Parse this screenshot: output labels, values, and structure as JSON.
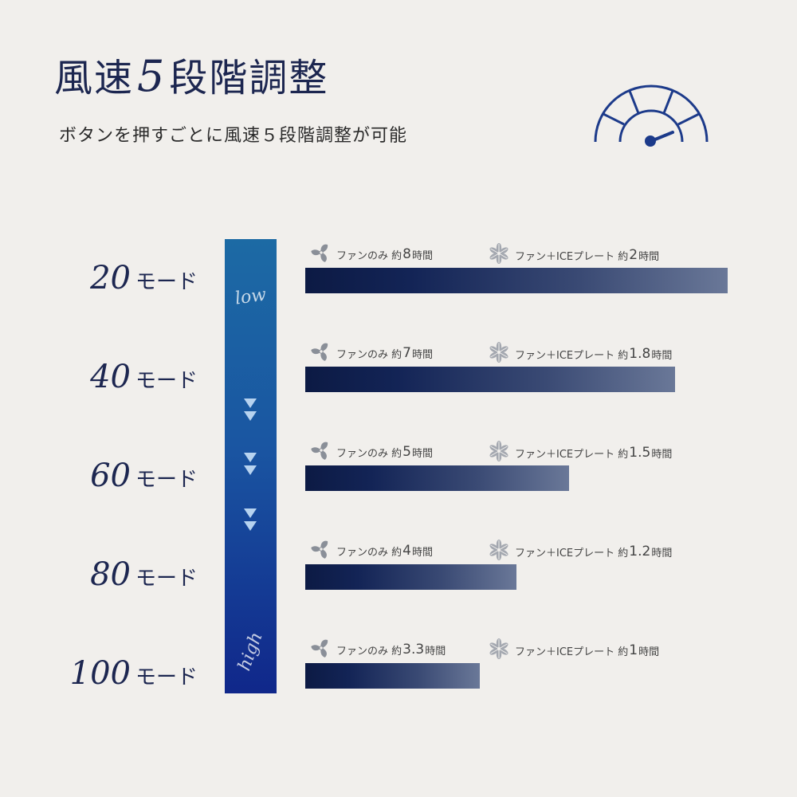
{
  "title": {
    "prefix": "風速",
    "number": "5",
    "suffix": "段階調整"
  },
  "subtitle": "ボタンを押すごとに風速５段階調整が可能",
  "speed_bar": {
    "low_label": "low",
    "high_label": "high"
  },
  "chart_data": {
    "type": "bar",
    "orientation": "horizontal",
    "categories": [
      "20モード",
      "40モード",
      "60モード",
      "80モード",
      "100モード"
    ],
    "values": [
      8,
      7,
      5,
      4,
      3.3
    ],
    "xlim": [
      0,
      8
    ],
    "modes": [
      {
        "number": "20",
        "unit": "モード",
        "fan_prefix": "ファンのみ 約",
        "fan_hours": "8",
        "fan_unit": "時間",
        "ice_prefix": "ファン＋ICEプレート 約",
        "ice_hours": "2",
        "ice_unit": "時間"
      },
      {
        "number": "40",
        "unit": "モード",
        "fan_prefix": "ファンのみ 約",
        "fan_hours": "7",
        "fan_unit": "時間",
        "ice_prefix": "ファン＋ICEプレート 約",
        "ice_hours": "1.8",
        "ice_unit": "時間"
      },
      {
        "number": "60",
        "unit": "モード",
        "fan_prefix": "ファンのみ 約",
        "fan_hours": "5",
        "fan_unit": "時間",
        "ice_prefix": "ファン＋ICEプレート 約",
        "ice_hours": "1.5",
        "ice_unit": "時間"
      },
      {
        "number": "80",
        "unit": "モード",
        "fan_prefix": "ファンのみ 約",
        "fan_hours": "4",
        "fan_unit": "時間",
        "ice_prefix": "ファン＋ICEプレート 約",
        "ice_hours": "1.2",
        "ice_unit": "時間"
      },
      {
        "number": "100",
        "unit": "モード",
        "fan_prefix": "ファンのみ 約",
        "fan_hours": "3.3",
        "fan_unit": "時間",
        "ice_prefix": "ファン＋ICEプレート 約",
        "ice_hours": "1",
        "ice_unit": "時間"
      }
    ]
  },
  "icons": {
    "gauge": "speedometer-icon",
    "fan": "fan-icon",
    "ice": "snowflake-icon"
  },
  "colors": {
    "navy": "#1c2650",
    "bar_dark": "#0c1a44",
    "bar_light": "#6a7898",
    "speed_top": "#1c6aa4",
    "speed_bottom": "#10278a",
    "background": "#f1efec"
  }
}
